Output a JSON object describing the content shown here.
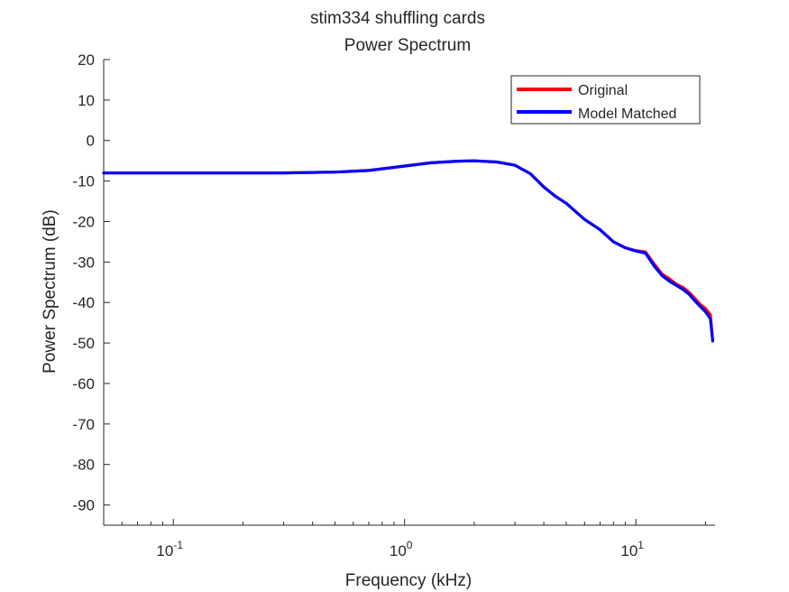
{
  "chart_data": {
    "type": "line",
    "title": "stim334 shuffling cards",
    "subtitle": "Power Spectrum",
    "xlabel": "Frequency (kHz)",
    "ylabel": "Power Spectrum (dB)",
    "xscale": "log",
    "xlim": [
      0.05,
      22
    ],
    "ylim": [
      -95,
      20
    ],
    "xticks": [
      0.1,
      1,
      10
    ],
    "xtick_labels": [
      {
        "base": "10",
        "exp": "-1"
      },
      {
        "base": "10",
        "exp": "0"
      },
      {
        "base": "10",
        "exp": "1"
      }
    ],
    "yticks": [
      20,
      10,
      0,
      -10,
      -20,
      -30,
      -40,
      -50,
      -60,
      -70,
      -80,
      -90
    ],
    "ytick_labels": [
      "20",
      "10",
      "0",
      "-10",
      "-20",
      "-30",
      "-40",
      "-50",
      "-60",
      "-70",
      "-80",
      "-90"
    ],
    "grid": false,
    "legend_position": "top-right",
    "series": [
      {
        "name": "Original",
        "color": "#ff0000",
        "x": [
          0.05,
          0.1,
          0.2,
          0.3,
          0.5,
          0.7,
          1.0,
          1.3,
          1.7,
          2.0,
          2.5,
          3.0,
          3.5,
          4.0,
          4.5,
          5.0,
          6.0,
          7.0,
          8.0,
          9.0,
          10.0,
          11.0,
          12.0,
          13.0,
          14.0,
          15.0,
          16.0,
          17.0,
          18.0,
          19.0,
          20.0,
          21.0,
          21.5
        ],
        "y": [
          -8.0,
          -8.0,
          -8.0,
          -8.0,
          -7.8,
          -7.4,
          -6.3,
          -5.5,
          -5.1,
          -5.0,
          -5.3,
          -6.1,
          -8.2,
          -11.5,
          -13.8,
          -15.5,
          -19.5,
          -22.0,
          -25.0,
          -26.5,
          -27.2,
          -27.5,
          -30.5,
          -33.0,
          -34.2,
          -35.5,
          -36.3,
          -37.5,
          -39.0,
          -40.5,
          -41.5,
          -43.0,
          -49.5
        ]
      },
      {
        "name": "Model Matched",
        "color": "#0000ff",
        "x": [
          0.05,
          0.1,
          0.2,
          0.3,
          0.5,
          0.7,
          1.0,
          1.3,
          1.7,
          2.0,
          2.5,
          3.0,
          3.5,
          4.0,
          4.5,
          5.0,
          6.0,
          7.0,
          8.0,
          9.0,
          10.0,
          11.0,
          12.0,
          13.0,
          14.0,
          15.0,
          16.0,
          17.0,
          18.0,
          19.0,
          20.0,
          21.0,
          21.5
        ],
        "y": [
          -8.0,
          -8.0,
          -8.0,
          -8.0,
          -7.8,
          -7.4,
          -6.3,
          -5.5,
          -5.1,
          -5.0,
          -5.3,
          -6.1,
          -8.2,
          -11.5,
          -13.8,
          -15.5,
          -19.5,
          -22.0,
          -25.0,
          -26.5,
          -27.3,
          -27.8,
          -31.0,
          -33.4,
          -34.8,
          -35.8,
          -36.8,
          -38.0,
          -39.6,
          -41.0,
          -42.3,
          -44.0,
          -49.5
        ]
      }
    ]
  }
}
